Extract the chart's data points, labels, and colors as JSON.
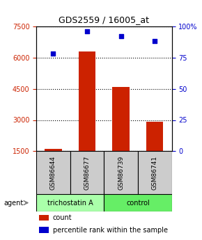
{
  "title": "GDS2559 / 16005_at",
  "samples": [
    "GSM86644",
    "GSM86677",
    "GSM86739",
    "GSM86741"
  ],
  "counts": [
    1620,
    6300,
    4600,
    2900
  ],
  "percentile_ranks": [
    78,
    96,
    92,
    88
  ],
  "ylim_left": [
    1500,
    7500
  ],
  "ylim_right": [
    0,
    100
  ],
  "yticks_left": [
    1500,
    3000,
    4500,
    6000,
    7500
  ],
  "yticks_right": [
    0,
    25,
    50,
    75,
    100
  ],
  "bar_color": "#cc2200",
  "dot_color": "#0000cc",
  "agent_groups": [
    {
      "label": "trichostatin A",
      "samples": [
        "GSM86644",
        "GSM86677"
      ],
      "color": "#aaffaa"
    },
    {
      "label": "control",
      "samples": [
        "GSM86739",
        "GSM86741"
      ],
      "color": "#66ee66"
    }
  ],
  "legend_count_color": "#cc2200",
  "legend_dot_color": "#0000cc",
  "grid_color": "#000000",
  "sample_box_color": "#cccccc",
  "left_tick_color": "#cc2200",
  "right_tick_color": "#0000cc"
}
